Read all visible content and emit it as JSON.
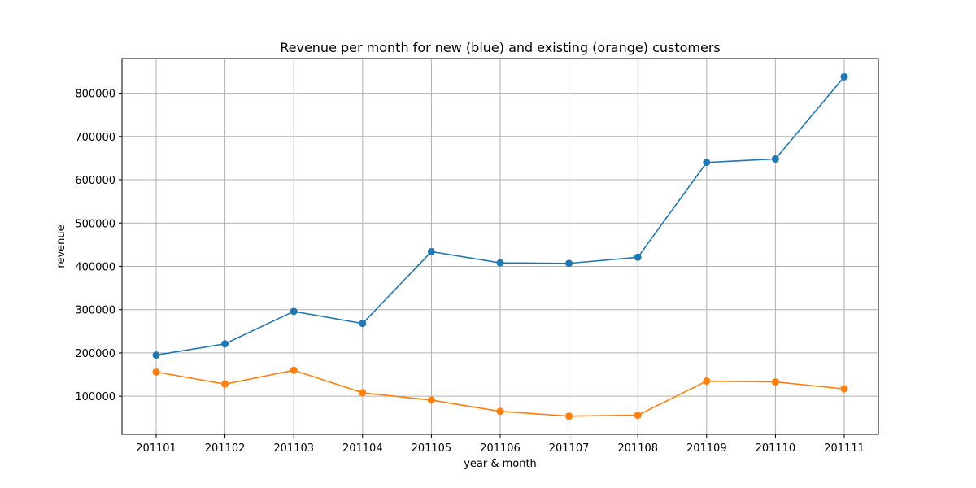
{
  "chart_data": {
    "type": "line",
    "title": "Revenue per month for new (blue) and existing (orange) customers",
    "xlabel": "year & month",
    "ylabel": "revenue",
    "categories": [
      "201101",
      "201102",
      "201103",
      "201104",
      "201105",
      "201106",
      "201107",
      "201108",
      "201109",
      "201110",
      "201111"
    ],
    "yticks": [
      100000,
      200000,
      300000,
      400000,
      500000,
      600000,
      700000,
      800000
    ],
    "ylim": [
      12000,
      880000
    ],
    "grid": true,
    "series": [
      {
        "color": "#1f77b4",
        "values": [
          195000,
          221000,
          296000,
          268000,
          434000,
          408000,
          407000,
          421000,
          640000,
          648000,
          838000
        ]
      },
      {
        "color": "#ff7f0e",
        "values": [
          156000,
          128000,
          160000,
          108000,
          91000,
          65000,
          54000,
          56000,
          135000,
          133000,
          117000
        ]
      }
    ]
  }
}
